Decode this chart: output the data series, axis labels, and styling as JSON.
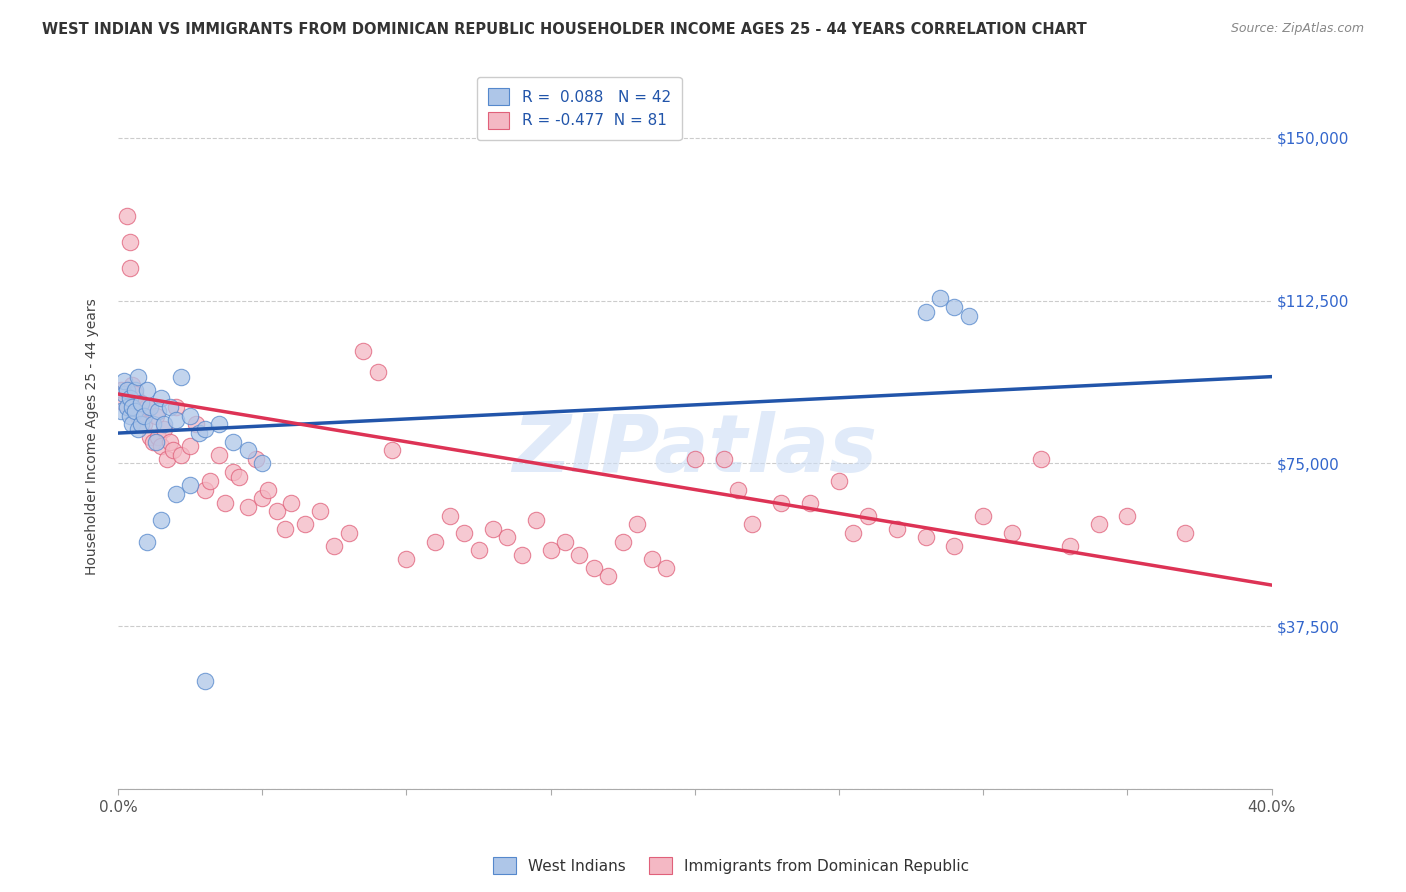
{
  "title": "WEST INDIAN VS IMMIGRANTS FROM DOMINICAN REPUBLIC HOUSEHOLDER INCOME AGES 25 - 44 YEARS CORRELATION CHART",
  "source": "Source: ZipAtlas.com",
  "ylabel": "Householder Income Ages 25 - 44 years",
  "xlim": [
    0,
    0.4
  ],
  "ylim": [
    0,
    162500
  ],
  "yticks": [
    0,
    37500,
    75000,
    112500,
    150000
  ],
  "ytick_labels": [
    "",
    "$37,500",
    "$75,000",
    "$112,500",
    "$150,000"
  ],
  "xticks": [
    0.0,
    0.05,
    0.1,
    0.15,
    0.2,
    0.25,
    0.3,
    0.35,
    0.4
  ],
  "blue_color": "#aec6e8",
  "pink_color": "#f4b8c4",
  "blue_edge_color": "#5588cc",
  "pink_edge_color": "#e0607a",
  "blue_line_color": "#2255aa",
  "pink_line_color": "#dd3355",
  "R_blue": 0.088,
  "N_blue": 42,
  "R_pink": -0.477,
  "N_pink": 81,
  "label_blue": "West Indians",
  "label_pink": "Immigrants from Dominican Republic",
  "watermark": "ZIPatlas",
  "blue_x": [
    0.001,
    0.002,
    0.002,
    0.003,
    0.003,
    0.004,
    0.004,
    0.005,
    0.005,
    0.006,
    0.006,
    0.007,
    0.007,
    0.008,
    0.008,
    0.009,
    0.01,
    0.011,
    0.012,
    0.013,
    0.014,
    0.015,
    0.016,
    0.018,
    0.02,
    0.022,
    0.025,
    0.028,
    0.03,
    0.035,
    0.04,
    0.045,
    0.05,
    0.28,
    0.285,
    0.29,
    0.295,
    0.01,
    0.015,
    0.02,
    0.025,
    0.03
  ],
  "blue_y": [
    87000,
    91000,
    94000,
    88000,
    92000,
    86000,
    90000,
    88000,
    84000,
    92000,
    87000,
    95000,
    83000,
    89000,
    84000,
    86000,
    92000,
    88000,
    84000,
    80000,
    87000,
    90000,
    84000,
    88000,
    85000,
    95000,
    86000,
    82000,
    83000,
    84000,
    80000,
    78000,
    75000,
    110000,
    113000,
    111000,
    109000,
    57000,
    62000,
    68000,
    70000,
    25000
  ],
  "pink_x": [
    0.001,
    0.002,
    0.003,
    0.004,
    0.005,
    0.006,
    0.007,
    0.008,
    0.009,
    0.01,
    0.011,
    0.012,
    0.013,
    0.014,
    0.015,
    0.016,
    0.017,
    0.018,
    0.019,
    0.02,
    0.022,
    0.025,
    0.027,
    0.03,
    0.032,
    0.035,
    0.037,
    0.04,
    0.042,
    0.045,
    0.048,
    0.05,
    0.052,
    0.055,
    0.058,
    0.06,
    0.065,
    0.07,
    0.075,
    0.08,
    0.085,
    0.09,
    0.095,
    0.1,
    0.11,
    0.115,
    0.12,
    0.125,
    0.13,
    0.135,
    0.14,
    0.145,
    0.15,
    0.155,
    0.16,
    0.165,
    0.17,
    0.175,
    0.18,
    0.185,
    0.19,
    0.2,
    0.21,
    0.215,
    0.22,
    0.23,
    0.24,
    0.25,
    0.255,
    0.26,
    0.27,
    0.28,
    0.29,
    0.3,
    0.31,
    0.32,
    0.33,
    0.34,
    0.35,
    0.37,
    0.004
  ],
  "pink_y": [
    92000,
    89000,
    132000,
    120000,
    93000,
    91000,
    86000,
    89000,
    84000,
    88000,
    81000,
    80000,
    86000,
    81000,
    79000,
    83000,
    76000,
    80000,
    78000,
    88000,
    77000,
    79000,
    84000,
    69000,
    71000,
    77000,
    66000,
    73000,
    72000,
    65000,
    76000,
    67000,
    69000,
    64000,
    60000,
    66000,
    61000,
    64000,
    56000,
    59000,
    101000,
    96000,
    78000,
    53000,
    57000,
    63000,
    59000,
    55000,
    60000,
    58000,
    54000,
    62000,
    55000,
    57000,
    54000,
    51000,
    49000,
    57000,
    61000,
    53000,
    51000,
    76000,
    76000,
    69000,
    61000,
    66000,
    66000,
    71000,
    59000,
    63000,
    60000,
    58000,
    56000,
    63000,
    59000,
    76000,
    56000,
    61000,
    63000,
    59000,
    126000
  ],
  "blue_trend_x": [
    0.0,
    0.4
  ],
  "blue_trend_y": [
    82000,
    95000
  ],
  "pink_trend_x": [
    0.0,
    0.4
  ],
  "pink_trend_y": [
    91000,
    47000
  ]
}
